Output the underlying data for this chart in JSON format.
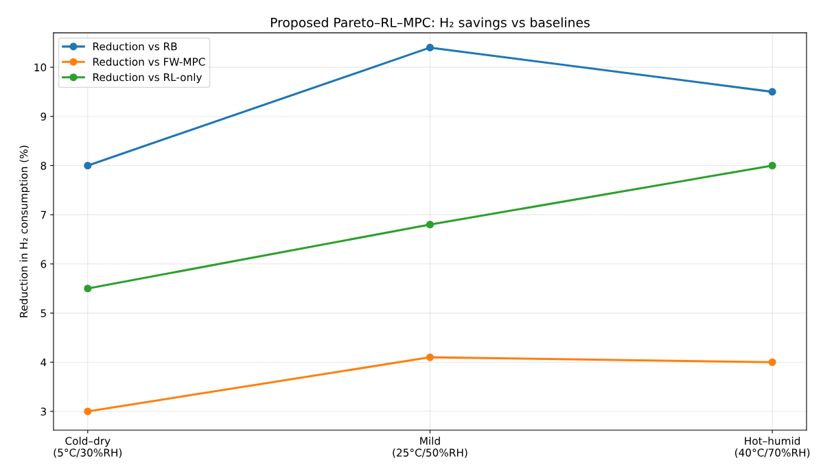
{
  "chart_data": {
    "type": "line",
    "title": "Proposed Pareto–RL–MPC: H₂ savings vs baselines",
    "ylabel": "Reduction in H₂ consumption (%)",
    "categories": [
      "Cold–dry\n(5°C/30%RH)",
      "Mild\n(25°C/50%RH)",
      "Hot–humid\n(40°C/70%RH)"
    ],
    "series": [
      {
        "name": "Reduction vs RB",
        "color": "#1f77b4",
        "values": [
          8.0,
          10.4,
          9.5
        ]
      },
      {
        "name": "Reduction vs FW-MPC",
        "color": "#ff7f0e",
        "values": [
          3.0,
          4.1,
          4.0
        ]
      },
      {
        "name": "Reduction vs RL-only",
        "color": "#2ca02c",
        "values": [
          5.5,
          6.8,
          8.0
        ]
      }
    ],
    "ylim": [
      2.62,
      10.7
    ],
    "yticks": [
      3,
      4,
      5,
      6,
      7,
      8,
      9,
      10
    ],
    "grid": true,
    "legend": "top left",
    "marker": "circle",
    "line_style": "solid"
  }
}
